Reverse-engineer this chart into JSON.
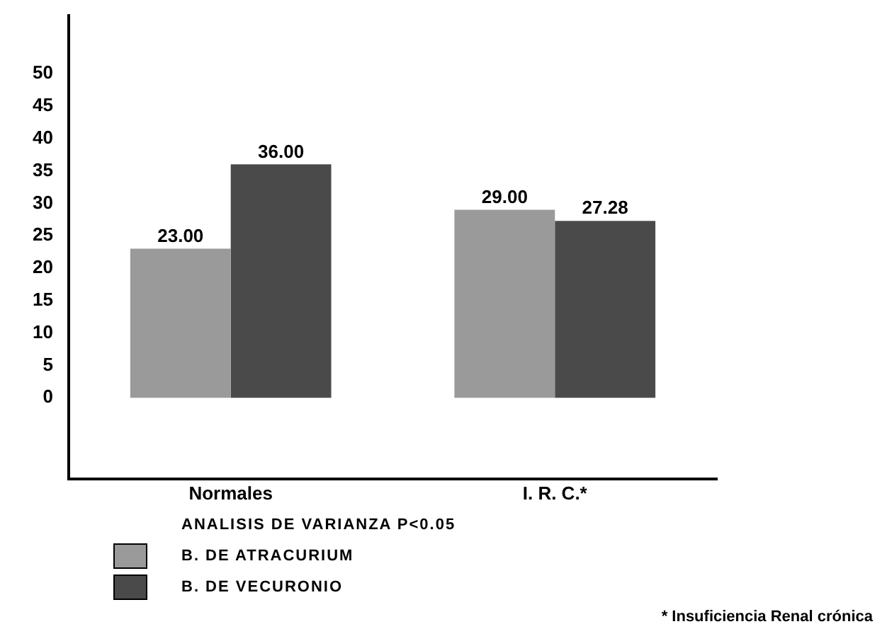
{
  "chart_data": {
    "type": "bar",
    "categories": [
      "Normales",
      "I. R. C.*"
    ],
    "series": [
      {
        "name": "B. DE ATRACURIUM",
        "color": "#9a9a9a",
        "values": [
          23.0,
          29.0
        ]
      },
      {
        "name": "B. DE VECURONIO",
        "color": "#4a4a4a",
        "values": [
          36.0,
          27.28
        ]
      }
    ],
    "value_labels": [
      [
        "23.00",
        "29.00"
      ],
      [
        "36.00",
        "27.28"
      ]
    ],
    "ylim": [
      -12.5,
      59
    ],
    "yticks": [
      0,
      5,
      10,
      15,
      20,
      25,
      30,
      35,
      40,
      45,
      50
    ],
    "grid": false,
    "legend": "bottom left",
    "annotations": [
      "ANALISIS DE VARIANZA P<0.05",
      "* Insuficiencia Renal crónica"
    ]
  }
}
